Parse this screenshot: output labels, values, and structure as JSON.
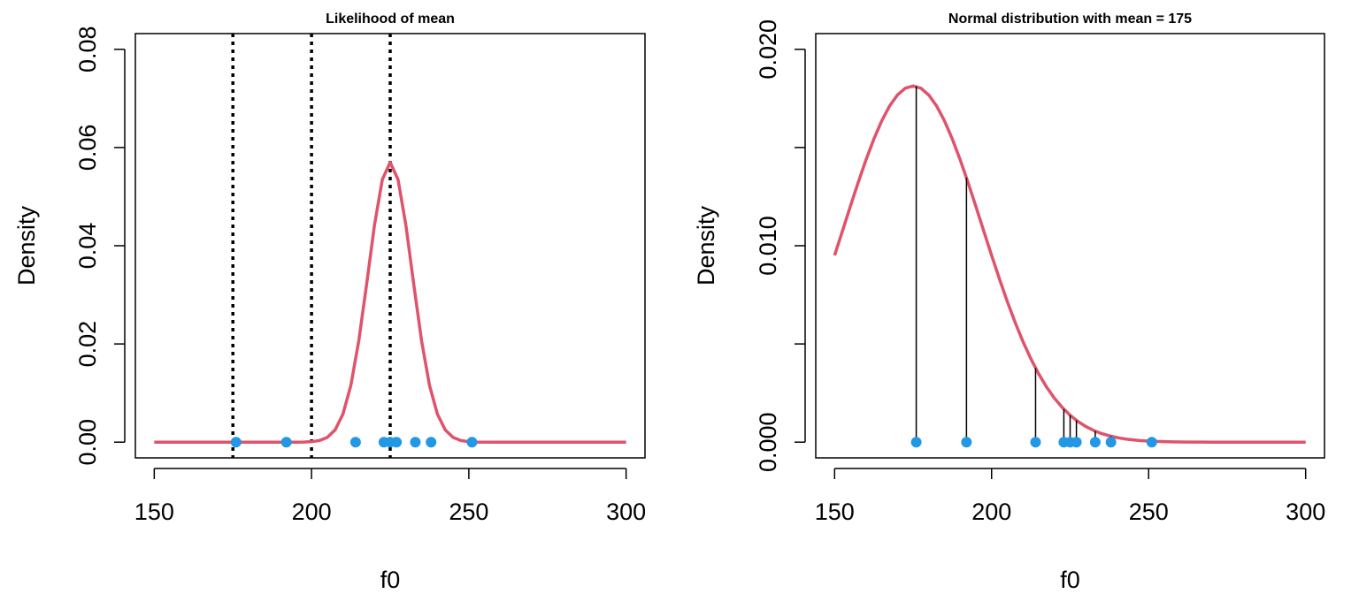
{
  "chart_data": [
    {
      "type": "line",
      "title": "Likelihood of mean",
      "xlabel": "f0",
      "ylabel": "Density",
      "xlim": [
        150,
        300
      ],
      "ylim": [
        0,
        0.08
      ],
      "x_ticks": [
        150,
        200,
        250,
        300
      ],
      "x_tick_labels": [
        "150",
        "200",
        "250",
        "300"
      ],
      "y_ticks": [
        0,
        0.02,
        0.04,
        0.06,
        0.08
      ],
      "y_tick_labels": [
        "0.00",
        "0.02",
        "0.04",
        "0.06",
        "0.08"
      ],
      "grid": false,
      "curve": {
        "kind": "normal",
        "mean": 225,
        "sd": 7,
        "x_range": [
          150,
          300
        ],
        "color": "#DF536B"
      },
      "vlines": {
        "x": [
          175,
          200,
          225
        ],
        "style": "dotted",
        "color": "#000000"
      },
      "points": {
        "x": [
          176,
          192,
          214,
          223,
          225,
          227,
          233,
          238,
          251
        ],
        "y": [
          0,
          0,
          0,
          0,
          0,
          0,
          0,
          0,
          0
        ],
        "color": "#2297E6"
      }
    },
    {
      "type": "line",
      "title": "Normal distribution with mean = 175",
      "xlabel": "f0",
      "ylabel": "Density",
      "xlim": [
        150,
        300
      ],
      "ylim": [
        0,
        0.02
      ],
      "x_ticks": [
        150,
        200,
        250,
        300
      ],
      "x_tick_labels": [
        "150",
        "200",
        "250",
        "300"
      ],
      "y_ticks": [
        0,
        0.005,
        0.01,
        0.015,
        0.02
      ],
      "y_tick_labels": [
        "0.000",
        "",
        "0.010",
        "",
        "0.020"
      ],
      "grid": false,
      "curve": {
        "kind": "normal",
        "mean": 175,
        "sd": 22,
        "x_range": [
          150,
          300
        ],
        "color": "#DF536B"
      },
      "segments": {
        "style": "solid",
        "color": "#000000"
      },
      "points": {
        "x": [
          176,
          192,
          214,
          223,
          225,
          227,
          233,
          238,
          251
        ],
        "y": [
          0,
          0,
          0,
          0,
          0,
          0,
          0,
          0,
          0
        ],
        "color": "#2297E6"
      }
    }
  ]
}
